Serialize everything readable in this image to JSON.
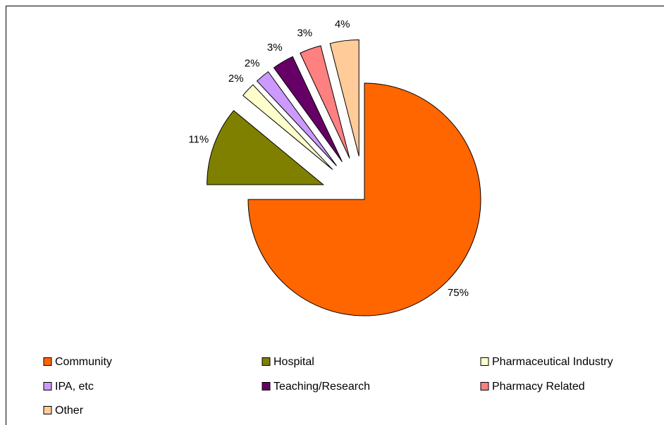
{
  "chart_data": {
    "type": "pie",
    "categories": [
      "Community",
      "Hospital",
      "Pharmaceutical Industry",
      "IPA, etc",
      "Teaching/Research",
      "Pharmacy Related",
      "Other"
    ],
    "values": [
      75,
      11,
      2,
      2,
      3,
      3,
      4
    ],
    "value_labels": [
      "75%",
      "11%",
      "2%",
      "2%",
      "3%",
      "3%",
      "4%"
    ],
    "colors": [
      "#ff6600",
      "#808000",
      "#ffffcc",
      "#cc99ff",
      "#660066",
      "#ff8080",
      "#ffcc99"
    ],
    "exploded": [
      false,
      true,
      true,
      true,
      true,
      true,
      true
    ],
    "legend": "bottom"
  }
}
